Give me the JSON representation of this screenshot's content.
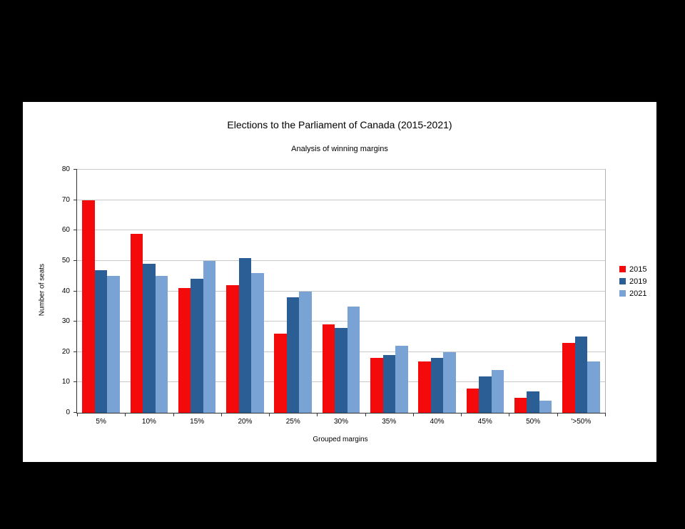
{
  "window": {
    "background_color": "#000000",
    "panel_color": "#ffffff"
  },
  "chart_data": {
    "type": "bar",
    "title": "Elections to the Parliament of Canada (2015-2021)",
    "subtitle": "Analysis of winning margins",
    "xlabel": "Grouped margins",
    "ylabel": "Number of seats",
    "categories": [
      "5%",
      "10%",
      "15%",
      "20%",
      "25%",
      "30%",
      "35%",
      "40%",
      "45%",
      "50%",
      "'>50%"
    ],
    "series": [
      {
        "name": "2015",
        "color": "#f40a0a",
        "values": [
          70,
          59,
          41,
          42,
          26,
          29,
          18,
          17,
          8,
          5,
          23
        ]
      },
      {
        "name": "2019",
        "color": "#2c5e96",
        "values": [
          47,
          49,
          44,
          51,
          38,
          28,
          19,
          18,
          12,
          7,
          25
        ]
      },
      {
        "name": "2021",
        "color": "#78a3d4",
        "values": [
          45,
          45,
          50,
          46,
          40,
          35,
          22,
          20,
          14,
          4,
          17
        ]
      }
    ],
    "ylim": [
      0,
      80
    ],
    "ytick_step": 10,
    "grid": true,
    "legend_position": "right",
    "gridline_color": "#c9c9c9",
    "axis_color": "#333333"
  }
}
